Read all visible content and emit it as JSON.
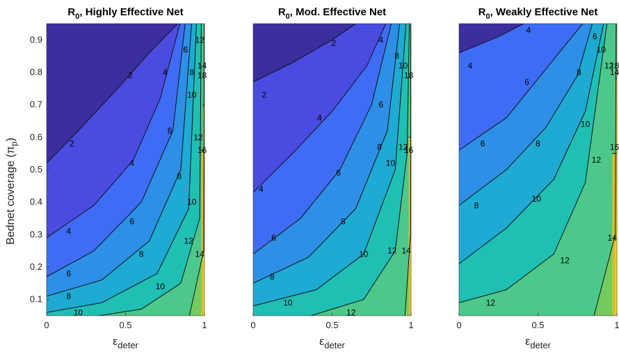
{
  "chart_data": {
    "type": "contour",
    "ylabel": "Bednet coverage (π",
    "ylabel_sub": "p",
    "ylabel_tail": ")",
    "xlabel": "ε",
    "xlabel_sub": "deter",
    "xlim": [
      0,
      1
    ],
    "ylim": [
      0.05,
      0.95
    ],
    "xticks": [
      0,
      0.5,
      1
    ],
    "xtick_labels": [
      "0",
      "0.5",
      "1"
    ],
    "yticks": [
      0.1,
      0.2,
      0.3,
      0.4,
      0.5,
      0.6,
      0.7,
      0.8,
      0.9
    ],
    "ytick_labels": [
      "0.1",
      "0.2",
      "0.3",
      "0.4",
      "0.5",
      "0.6",
      "0.7",
      "0.8",
      "0.9"
    ],
    "levels": [
      2,
      4,
      6,
      8,
      10,
      12,
      14,
      16,
      18
    ],
    "colors": [
      "#3b2fa0",
      "#4a4be0",
      "#3f6cf5",
      "#2e8fe6",
      "#1eaad2",
      "#1fbfb4",
      "#4cc88a",
      "#74cc5e",
      "#d4bd30",
      "#f5d82a"
    ],
    "panels": [
      {
        "title": "R",
        "title_sub": "0",
        "title_tail": ", Highly Effective Net",
        "bands": [
          {
            "level": 2,
            "points": [
              [
                0,
                0.52
              ],
              [
                0.2,
                0.62
              ],
              [
                0.45,
                0.75
              ],
              [
                0.65,
                0.86
              ],
              [
                0.85,
                0.96
              ]
            ]
          },
          {
            "level": 4,
            "points": [
              [
                0,
                0.29
              ],
              [
                0.3,
                0.39
              ],
              [
                0.55,
                0.53
              ],
              [
                0.72,
                0.72
              ],
              [
                0.85,
                0.96
              ]
            ]
          },
          {
            "level": 6,
            "points": [
              [
                0,
                0.17
              ],
              [
                0.3,
                0.25
              ],
              [
                0.6,
                0.4
              ],
              [
                0.8,
                0.62
              ],
              [
                0.88,
                0.96
              ]
            ]
          },
          {
            "level": 8,
            "points": [
              [
                0,
                0.11
              ],
              [
                0.35,
                0.16
              ],
              [
                0.65,
                0.28
              ],
              [
                0.85,
                0.5
              ],
              [
                0.92,
                0.96
              ]
            ]
          },
          {
            "level": 10,
            "points": [
              [
                0,
                0.06
              ],
              [
                0.35,
                0.09
              ],
              [
                0.7,
                0.18
              ],
              [
                0.9,
                0.38
              ],
              [
                0.95,
                0.96
              ]
            ]
          },
          {
            "level": 12,
            "points": [
              [
                0.2,
                0.04
              ],
              [
                0.6,
                0.07
              ],
              [
                0.85,
                0.15
              ],
              [
                0.97,
                0.35
              ],
              [
                0.98,
                0.96
              ]
            ]
          },
          {
            "level": 14,
            "points": [
              [
                0.9,
                0.04
              ],
              [
                0.995,
                0.25
              ],
              [
                0.998,
                0.96
              ]
            ]
          },
          {
            "level": 16,
            "points": [
              [
                0.98,
                0.56
              ],
              [
                1,
                0.55
              ]
            ]
          },
          {
            "level": 18,
            "points": [
              [
                0.992,
                0.7
              ],
              [
                1,
                0.69
              ]
            ]
          }
        ],
        "labels": [
          {
            "text": "2",
            "x": 0.16,
            "y": 0.58
          },
          {
            "text": "2",
            "x": 0.53,
            "y": 0.79
          },
          {
            "text": "4",
            "x": 0.14,
            "y": 0.31
          },
          {
            "text": "4",
            "x": 0.54,
            "y": 0.52
          },
          {
            "text": "4",
            "x": 0.75,
            "y": 0.8
          },
          {
            "text": "6",
            "x": 0.14,
            "y": 0.18
          },
          {
            "text": "6",
            "x": 0.54,
            "y": 0.34
          },
          {
            "text": "6",
            "x": 0.78,
            "y": 0.62
          },
          {
            "text": "6",
            "x": 0.88,
            "y": 0.87
          },
          {
            "text": "8",
            "x": 0.14,
            "y": 0.11
          },
          {
            "text": "8",
            "x": 0.6,
            "y": 0.24
          },
          {
            "text": "8",
            "x": 0.84,
            "y": 0.48
          },
          {
            "text": "8",
            "x": 0.92,
            "y": 0.8
          },
          {
            "text": "10",
            "x": 0.2,
            "y": 0.06
          },
          {
            "text": "10",
            "x": 0.72,
            "y": 0.14
          },
          {
            "text": "10",
            "x": 0.92,
            "y": 0.4
          },
          {
            "text": "10",
            "x": 0.92,
            "y": 0.73
          },
          {
            "text": "12",
            "x": 0.9,
            "y": 0.28
          },
          {
            "text": "12",
            "x": 0.96,
            "y": 0.6
          },
          {
            "text": "12",
            "x": 0.97,
            "y": 0.9
          },
          {
            "text": "14",
            "x": 0.97,
            "y": 0.24
          },
          {
            "text": "14",
            "x": 0.985,
            "y": 0.82
          },
          {
            "text": "16",
            "x": 0.985,
            "y": 0.56
          },
          {
            "text": "18",
            "x": 0.985,
            "y": 0.79
          }
        ]
      },
      {
        "title": "R",
        "title_sub": "0",
        "title_tail": ", Mod. Effective Net",
        "bands": [
          {
            "level": 2,
            "points": [
              [
                0,
                0.77
              ],
              [
                0.25,
                0.83
              ],
              [
                0.5,
                0.9
              ],
              [
                0.68,
                0.96
              ]
            ]
          },
          {
            "level": 4,
            "points": [
              [
                0,
                0.43
              ],
              [
                0.25,
                0.55
              ],
              [
                0.5,
                0.68
              ],
              [
                0.72,
                0.82
              ],
              [
                0.85,
                0.96
              ]
            ]
          },
          {
            "level": 6,
            "points": [
              [
                0,
                0.24
              ],
              [
                0.3,
                0.35
              ],
              [
                0.55,
                0.5
              ],
              [
                0.75,
                0.7
              ],
              [
                0.88,
                0.96
              ]
            ]
          },
          {
            "level": 8,
            "points": [
              [
                0,
                0.15
              ],
              [
                0.35,
                0.23
              ],
              [
                0.65,
                0.38
              ],
              [
                0.85,
                0.62
              ],
              [
                0.93,
                0.96
              ]
            ]
          },
          {
            "level": 10,
            "points": [
              [
                0,
                0.08
              ],
              [
                0.4,
                0.13
              ],
              [
                0.7,
                0.24
              ],
              [
                0.9,
                0.5
              ],
              [
                0.97,
                0.96
              ]
            ]
          },
          {
            "level": 12,
            "points": [
              [
                0.3,
                0.04
              ],
              [
                0.7,
                0.1
              ],
              [
                0.9,
                0.25
              ],
              [
                0.975,
                0.55
              ],
              [
                0.99,
                0.96
              ]
            ]
          },
          {
            "level": 14,
            "points": [
              [
                0.96,
                0.04
              ],
              [
                0.997,
                0.3
              ],
              [
                0.998,
                0.96
              ]
            ]
          },
          {
            "level": 16,
            "points": [
              [
                0.985,
                0.6
              ],
              [
                1,
                0.6
              ]
            ]
          },
          {
            "level": 18,
            "points": [
              [
                0.995,
                0.78
              ],
              [
                1,
                0.78
              ]
            ]
          }
        ],
        "labels": [
          {
            "text": "2",
            "x": 0.07,
            "y": 0.73
          },
          {
            "text": "2",
            "x": 0.51,
            "y": 0.89
          },
          {
            "text": "4",
            "x": 0.05,
            "y": 0.44
          },
          {
            "text": "4",
            "x": 0.42,
            "y": 0.66
          },
          {
            "text": "4",
            "x": 0.81,
            "y": 0.9
          },
          {
            "text": "6",
            "x": 0.13,
            "y": 0.29
          },
          {
            "text": "6",
            "x": 0.54,
            "y": 0.49
          },
          {
            "text": "6",
            "x": 0.81,
            "y": 0.7
          },
          {
            "text": "8",
            "x": 0.12,
            "y": 0.17
          },
          {
            "text": "8",
            "x": 0.57,
            "y": 0.34
          },
          {
            "text": "8",
            "x": 0.8,
            "y": 0.57
          },
          {
            "text": "8",
            "x": 0.91,
            "y": 0.85
          },
          {
            "text": "10",
            "x": 0.22,
            "y": 0.09
          },
          {
            "text": "10",
            "x": 0.7,
            "y": 0.24
          },
          {
            "text": "10",
            "x": 0.87,
            "y": 0.52
          },
          {
            "text": "10",
            "x": 0.95,
            "y": 0.82
          },
          {
            "text": "12",
            "x": 0.62,
            "y": 0.06
          },
          {
            "text": "12",
            "x": 0.88,
            "y": 0.25
          },
          {
            "text": "12",
            "x": 0.95,
            "y": 0.57
          },
          {
            "text": "14",
            "x": 0.97,
            "y": 0.25
          },
          {
            "text": "16",
            "x": 0.985,
            "y": 0.56
          },
          {
            "text": "18",
            "x": 0.985,
            "y": 0.79
          }
        ]
      },
      {
        "title": "R",
        "title_sub": "0",
        "title_tail": ", Weakly Effective Net",
        "bands": [
          {
            "level": 4,
            "points": [
              [
                0,
                0.86
              ],
              [
                0.25,
                0.91
              ],
              [
                0.45,
                0.96
              ]
            ]
          },
          {
            "level": 6,
            "points": [
              [
                0,
                0.56
              ],
              [
                0.3,
                0.66
              ],
              [
                0.5,
                0.78
              ],
              [
                0.7,
                0.9
              ],
              [
                0.8,
                0.96
              ]
            ]
          },
          {
            "level": 8,
            "points": [
              [
                0,
                0.39
              ],
              [
                0.3,
                0.5
              ],
              [
                0.55,
                0.63
              ],
              [
                0.75,
                0.79
              ],
              [
                0.85,
                0.96
              ]
            ]
          },
          {
            "level": 10,
            "points": [
              [
                0,
                0.21
              ],
              [
                0.3,
                0.32
              ],
              [
                0.6,
                0.47
              ],
              [
                0.8,
                0.68
              ],
              [
                0.92,
                0.96
              ]
            ]
          },
          {
            "level": 12,
            "points": [
              [
                0,
                0.09
              ],
              [
                0.3,
                0.13
              ],
              [
                0.6,
                0.24
              ],
              [
                0.8,
                0.46
              ],
              [
                0.94,
                0.96
              ]
            ]
          },
          {
            "level": 14,
            "points": [
              [
                0.85,
                0.04
              ],
              [
                0.99,
                0.3
              ],
              [
                0.995,
                0.96
              ]
            ]
          },
          {
            "level": 16,
            "points": [
              [
                0.97,
                0.55
              ],
              [
                1,
                0.55
              ]
            ]
          },
          {
            "level": 18,
            "points": [
              [
                0.99,
                0.78
              ],
              [
                1,
                0.78
              ]
            ]
          }
        ],
        "labels": [
          {
            "text": "4",
            "x": 0.07,
            "y": 0.82
          },
          {
            "text": "4",
            "x": 0.44,
            "y": 0.93
          },
          {
            "text": "6",
            "x": 0.15,
            "y": 0.58
          },
          {
            "text": "6",
            "x": 0.43,
            "y": 0.77
          },
          {
            "text": "6",
            "x": 0.86,
            "y": 0.91
          },
          {
            "text": "8",
            "x": 0.11,
            "y": 0.39
          },
          {
            "text": "8",
            "x": 0.5,
            "y": 0.58
          },
          {
            "text": "8",
            "x": 0.76,
            "y": 0.8
          },
          {
            "text": "10",
            "x": 0.49,
            "y": 0.41
          },
          {
            "text": "10",
            "x": 0.8,
            "y": 0.64
          },
          {
            "text": "10",
            "x": 0.9,
            "y": 0.87
          },
          {
            "text": "12",
            "x": 0.2,
            "y": 0.09
          },
          {
            "text": "12",
            "x": 0.67,
            "y": 0.22
          },
          {
            "text": "12",
            "x": 0.87,
            "y": 0.53
          },
          {
            "text": "12",
            "x": 0.95,
            "y": 0.82
          },
          {
            "text": "14",
            "x": 0.97,
            "y": 0.29
          },
          {
            "text": "14",
            "x": 0.985,
            "y": 0.8
          },
          {
            "text": "16",
            "x": 0.985,
            "y": 0.57
          },
          {
            "text": "18",
            "x": 0.985,
            "y": 0.82
          }
        ]
      }
    ]
  }
}
